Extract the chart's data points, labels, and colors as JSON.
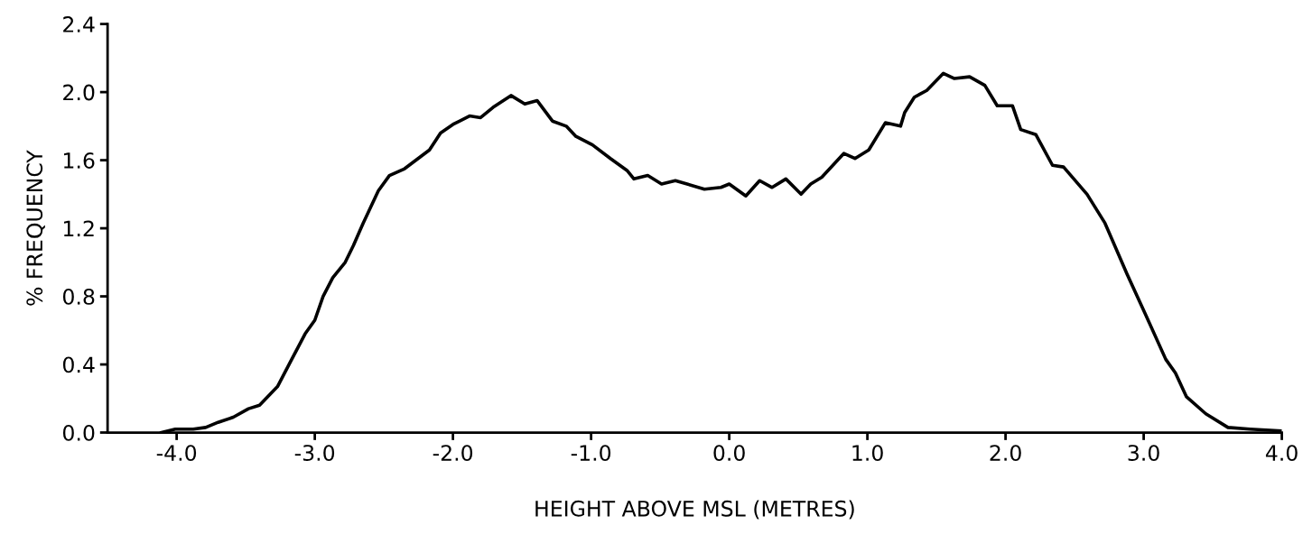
{
  "chart_data": {
    "type": "line",
    "xlabel": "HEIGHT ABOVE MSL (METRES)",
    "ylabel": "% FREQUENCY",
    "x": [
      -4.11,
      -4.01,
      -3.88,
      -3.79,
      -3.7,
      -3.59,
      -3.48,
      -3.4,
      -3.27,
      -3.18,
      -3.07,
      -3.0,
      -2.94,
      -2.87,
      -2.78,
      -2.72,
      -2.65,
      -2.54,
      -2.46,
      -2.35,
      -2.17,
      -2.09,
      -2.0,
      -1.88,
      -1.8,
      -1.71,
      -1.58,
      -1.48,
      -1.39,
      -1.28,
      -1.18,
      -1.11,
      -0.99,
      -0.86,
      -0.74,
      -0.69,
      -0.59,
      -0.49,
      -0.39,
      -0.18,
      -0.06,
      0.0,
      0.12,
      0.22,
      0.31,
      0.41,
      0.52,
      0.59,
      0.67,
      0.83,
      0.91,
      1.01,
      1.13,
      1.24,
      1.27,
      1.34,
      1.43,
      1.55,
      1.63,
      1.74,
      1.85,
      1.94,
      2.05,
      2.11,
      2.22,
      2.34,
      2.42,
      2.59,
      2.72,
      2.88,
      3.01,
      3.16,
      3.23,
      3.31,
      3.45,
      3.61,
      3.77,
      3.99
    ],
    "series": [
      {
        "color": "#000000",
        "values": [
          0.0,
          0.02,
          0.02,
          0.03,
          0.06,
          0.09,
          0.14,
          0.16,
          0.27,
          0.41,
          0.58,
          0.66,
          0.8,
          0.91,
          1.0,
          1.1,
          1.23,
          1.42,
          1.51,
          1.55,
          1.66,
          1.76,
          1.81,
          1.86,
          1.85,
          1.91,
          1.98,
          1.93,
          1.95,
          1.83,
          1.8,
          1.74,
          1.69,
          1.61,
          1.54,
          1.49,
          1.51,
          1.46,
          1.48,
          1.43,
          1.44,
          1.46,
          1.39,
          1.48,
          1.44,
          1.49,
          1.4,
          1.46,
          1.5,
          1.64,
          1.61,
          1.66,
          1.82,
          1.8,
          1.88,
          1.97,
          2.01,
          2.11,
          2.08,
          2.09,
          2.04,
          1.92,
          1.92,
          1.78,
          1.75,
          1.57,
          1.56,
          1.4,
          1.23,
          0.93,
          0.7,
          0.43,
          0.35,
          0.21,
          0.11,
          0.03,
          0.02,
          0.01
        ]
      }
    ],
    "xlim": [
      -4.5,
      4.0
    ],
    "ylim": [
      0,
      2.4
    ],
    "xticks": [
      {
        "value": -4,
        "label": "-4.0"
      },
      {
        "value": -3,
        "label": "-3.0"
      },
      {
        "value": -2,
        "label": "-2.0"
      },
      {
        "value": -1,
        "label": "-1.0"
      },
      {
        "value": 0,
        "label": "0.0"
      },
      {
        "value": 1,
        "label": "1.0"
      },
      {
        "value": 2,
        "label": "2.0"
      },
      {
        "value": 3,
        "label": "3.0"
      },
      {
        "value": 4,
        "label": "4.0"
      }
    ],
    "yticks": [
      {
        "value": 0,
        "label": "0.0"
      },
      0.4,
      0.8,
      1.2,
      1.6,
      {
        "value": 2,
        "label": "2.0"
      },
      2.4
    ],
    "grid": false,
    "legend": false,
    "marker": "none",
    "line_style": "solid"
  }
}
